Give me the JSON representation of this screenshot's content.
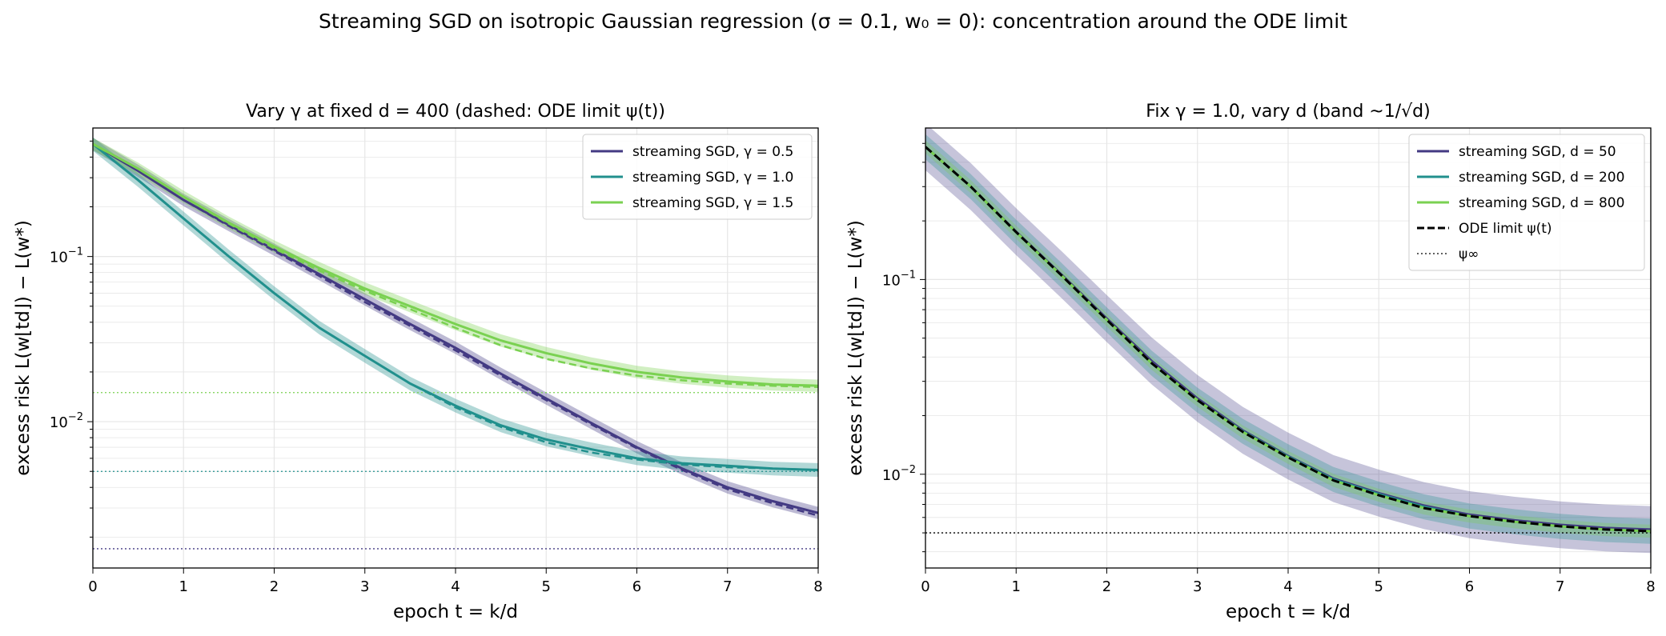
{
  "figure_title": "Streaming SGD on isotropic Gaussian regression (σ = 0.1, w₀ = 0): concentration around the ODE limit",
  "colors": {
    "purple": "#433a83",
    "teal": "#21908d",
    "green": "#7ad151",
    "black": "#000000",
    "grid": "#e6e6e6"
  },
  "chart_data": [
    {
      "type": "line",
      "title": "Vary γ at fixed d = 400 (dashed: ODE limit ψ(t))",
      "xlabel": "epoch t = k/d",
      "ylabel": "excess risk L(w⌊td⌋) − L(w*)",
      "xlim": [
        0,
        8
      ],
      "ylim": [
        0.0013,
        0.6
      ],
      "yscale": "log",
      "grid": true,
      "legend_position": "top-right",
      "x_ticks": [
        "0",
        "1",
        "2",
        "3",
        "4",
        "5",
        "6",
        "7",
        "8"
      ],
      "y_ticks": [
        {
          "value": 0.1,
          "base": "10",
          "exp": "−1"
        },
        {
          "value": 0.01,
          "base": "10",
          "exp": "−2"
        }
      ],
      "x": [
        0,
        0.5,
        1,
        1.5,
        2,
        2.5,
        3,
        3.5,
        4,
        4.5,
        5,
        5.5,
        6,
        6.5,
        7,
        7.5,
        8
      ],
      "series": [
        {
          "name": "streaming SGD, γ = 0.5",
          "color": "purple",
          "band_frac": 0.09,
          "values": [
            0.48,
            0.33,
            0.22,
            0.155,
            0.11,
            0.078,
            0.055,
            0.039,
            0.028,
            0.0195,
            0.0138,
            0.0098,
            0.007,
            0.0052,
            0.004,
            0.0033,
            0.0028
          ],
          "ode": [
            0.48,
            0.33,
            0.22,
            0.153,
            0.108,
            0.076,
            0.053,
            0.038,
            0.027,
            0.019,
            0.0135,
            0.0096,
            0.0069,
            0.0051,
            0.0039,
            0.0032,
            0.0027
          ],
          "floor": 0.0017
        },
        {
          "name": "streaming SGD, γ = 1.0",
          "color": "teal",
          "band_frac": 0.1,
          "values": [
            0.48,
            0.29,
            0.17,
            0.1,
            0.06,
            0.037,
            0.025,
            0.017,
            0.0125,
            0.0095,
            0.0078,
            0.0068,
            0.006,
            0.0056,
            0.0054,
            0.0052,
            0.0051
          ],
          "ode": [
            0.48,
            0.29,
            0.17,
            0.1,
            0.06,
            0.037,
            0.025,
            0.017,
            0.0122,
            0.0093,
            0.0075,
            0.0065,
            0.0059,
            0.0055,
            0.0053,
            0.0052,
            0.0051
          ],
          "floor": 0.005
        },
        {
          "name": "streaming SGD, γ = 1.5",
          "color": "green",
          "band_frac": 0.09,
          "values": [
            0.48,
            0.34,
            0.23,
            0.16,
            0.115,
            0.085,
            0.064,
            0.05,
            0.039,
            0.031,
            0.026,
            0.0225,
            0.02,
            0.0185,
            0.0175,
            0.0168,
            0.0165
          ],
          "ode": [
            0.48,
            0.34,
            0.23,
            0.158,
            0.112,
            0.082,
            0.062,
            0.048,
            0.037,
            0.029,
            0.024,
            0.021,
            0.019,
            0.0178,
            0.017,
            0.0165,
            0.0162
          ],
          "floor": 0.015
        }
      ]
    },
    {
      "type": "line",
      "title": "Fix γ = 1.0, vary d (band ~1/√d)",
      "xlabel": "epoch t = k/d",
      "ylabel": "excess risk L(w⌊td⌋) − L(w*)",
      "xlim": [
        0,
        8
      ],
      "ylim": [
        0.0033,
        0.6
      ],
      "yscale": "log",
      "grid": true,
      "legend_position": "top-right",
      "x_ticks": [
        "0",
        "1",
        "2",
        "3",
        "4",
        "5",
        "6",
        "7",
        "8"
      ],
      "y_ticks": [
        {
          "value": 0.1,
          "base": "10",
          "exp": "−1"
        },
        {
          "value": 0.01,
          "base": "10",
          "exp": "−2"
        }
      ],
      "x": [
        0,
        0.5,
        1,
        1.5,
        2,
        2.5,
        3,
        3.5,
        4,
        4.5,
        5,
        5.5,
        6,
        6.5,
        7,
        7.5,
        8
      ],
      "ode": [
        0.48,
        0.3,
        0.175,
        0.105,
        0.062,
        0.037,
        0.024,
        0.0165,
        0.0122,
        0.0093,
        0.0078,
        0.0067,
        0.0061,
        0.0057,
        0.0054,
        0.0052,
        0.0051
      ],
      "series": [
        {
          "name": "streaming SGD, d = 50",
          "color": "purple",
          "band_frac": 0.32,
          "values": [
            0.48,
            0.3,
            0.176,
            0.106,
            0.063,
            0.038,
            0.0245,
            0.0168,
            0.0124,
            0.0095,
            0.008,
            0.0069,
            0.0062,
            0.0058,
            0.0055,
            0.0053,
            0.0052
          ]
        },
        {
          "name": "streaming SGD, d = 200",
          "color": "teal",
          "band_frac": 0.16,
          "values": [
            0.48,
            0.3,
            0.175,
            0.105,
            0.062,
            0.037,
            0.024,
            0.0166,
            0.0123,
            0.0094,
            0.0079,
            0.0068,
            0.0061,
            0.0057,
            0.0054,
            0.0052,
            0.0051
          ]
        },
        {
          "name": "streaming SGD, d = 800",
          "color": "green",
          "band_frac": 0.08,
          "values": [
            0.48,
            0.3,
            0.175,
            0.105,
            0.062,
            0.037,
            0.024,
            0.0165,
            0.0122,
            0.0093,
            0.0078,
            0.0067,
            0.0061,
            0.0057,
            0.0054,
            0.0052,
            0.0051
          ]
        }
      ],
      "ode_label": "ODE limit ψ(t)",
      "floor": 0.005,
      "floor_label": "ψ∞"
    }
  ]
}
